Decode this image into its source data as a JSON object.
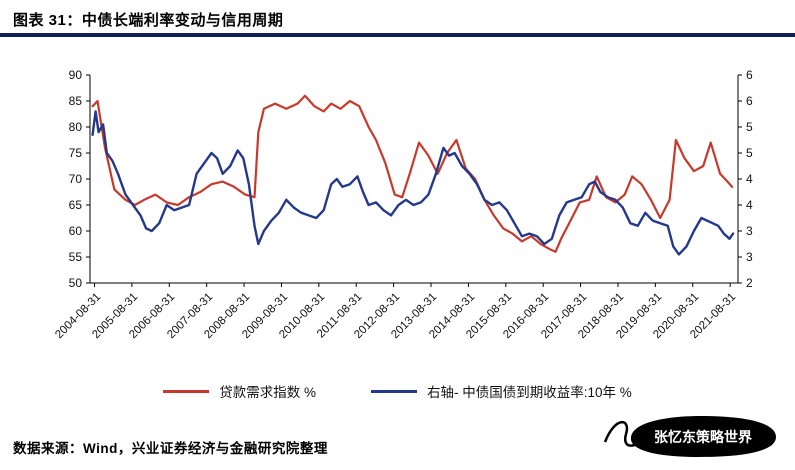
{
  "header": {
    "title": "图表 31：中债长端利率变动与信用周期"
  },
  "colors": {
    "title_rule": "#141e55",
    "loan_demand_red": "#c8392b",
    "bond_yield_blue": "#24388c",
    "axis_line": "#000000"
  },
  "legend": {
    "items": [
      {
        "label": "贷款需求指数 %",
        "color": "#c8392b"
      },
      {
        "label": "右轴- 中债国债到期收益率:10年 %",
        "color": "#24388c"
      }
    ]
  },
  "footer": {
    "source_text": "数据来源：Wind，兴业证券经济与金融研究院整理"
  },
  "watermark": {
    "text": "张忆东策略世界"
  },
  "chart_data": {
    "type": "line",
    "title": "中债长端利率变动与信用周期",
    "x_min": 2004.55,
    "x_max": 2021.88,
    "grid": false,
    "legend_position": "bottom",
    "left_axis": {
      "label": "贷款需求指数 %",
      "min": 50,
      "max": 90,
      "ticks": [
        90,
        85,
        80,
        75,
        70,
        65,
        60,
        55,
        50
      ]
    },
    "right_axis": {
      "label": "中债国债到期收益率:10年 %",
      "min": 2,
      "max": 6,
      "ticks": [
        {
          "value": 6,
          "label": "6"
        },
        {
          "value": 5.5,
          "label": "6"
        },
        {
          "value": 5,
          "label": "5"
        },
        {
          "value": 4.5,
          "label": "5"
        },
        {
          "value": 4,
          "label": "4"
        },
        {
          "value": 3.5,
          "label": "4"
        },
        {
          "value": 3,
          "label": "3"
        },
        {
          "value": 2.5,
          "label": "3"
        },
        {
          "value": 2,
          "label": "2"
        }
      ]
    },
    "x_ticks": [
      {
        "value": 2004.67,
        "label": "2004-08-31"
      },
      {
        "value": 2005.67,
        "label": "2005-08-31"
      },
      {
        "value": 2006.67,
        "label": "2006-08-31"
      },
      {
        "value": 2007.67,
        "label": "2007-08-31"
      },
      {
        "value": 2008.67,
        "label": "2008-08-31"
      },
      {
        "value": 2009.67,
        "label": "2009-08-31"
      },
      {
        "value": 2010.67,
        "label": "2010-08-31"
      },
      {
        "value": 2011.67,
        "label": "2011-08-31"
      },
      {
        "value": 2012.67,
        "label": "2012-08-31"
      },
      {
        "value": 2013.67,
        "label": "2013-08-31"
      },
      {
        "value": 2014.67,
        "label": "2014-08-31"
      },
      {
        "value": 2015.67,
        "label": "2015-08-31"
      },
      {
        "value": 2016.67,
        "label": "2016-08-31"
      },
      {
        "value": 2017.67,
        "label": "2017-08-31"
      },
      {
        "value": 2018.67,
        "label": "2018-08-31"
      },
      {
        "value": 2019.67,
        "label": "2019-08-31"
      },
      {
        "value": 2020.67,
        "label": "2020-08-31"
      },
      {
        "value": 2021.67,
        "label": "2021-08-31"
      }
    ],
    "series": [
      {
        "name": "贷款需求指数 %",
        "axis": "left",
        "color": "#c8392b",
        "width": 2.2,
        "points": [
          [
            2004.62,
            84
          ],
          [
            2004.75,
            85
          ],
          [
            2004.95,
            76
          ],
          [
            2005.2,
            68
          ],
          [
            2005.5,
            66
          ],
          [
            2005.75,
            65
          ],
          [
            2006.0,
            66
          ],
          [
            2006.3,
            67
          ],
          [
            2006.6,
            65.5
          ],
          [
            2006.9,
            65
          ],
          [
            2007.2,
            66.5
          ],
          [
            2007.5,
            67.5
          ],
          [
            2007.8,
            69
          ],
          [
            2008.1,
            69.5
          ],
          [
            2008.4,
            68.5
          ],
          [
            2008.7,
            67
          ],
          [
            2008.95,
            66.5
          ],
          [
            2009.05,
            79
          ],
          [
            2009.2,
            83.5
          ],
          [
            2009.5,
            84.5
          ],
          [
            2009.8,
            83.5
          ],
          [
            2010.1,
            84.5
          ],
          [
            2010.3,
            86
          ],
          [
            2010.55,
            84
          ],
          [
            2010.8,
            83
          ],
          [
            2011.0,
            84.5
          ],
          [
            2011.25,
            83.5
          ],
          [
            2011.5,
            85
          ],
          [
            2011.75,
            84
          ],
          [
            2012.0,
            80
          ],
          [
            2012.2,
            77.5
          ],
          [
            2012.45,
            73
          ],
          [
            2012.7,
            67
          ],
          [
            2012.9,
            66.5
          ],
          [
            2013.1,
            71
          ],
          [
            2013.35,
            77
          ],
          [
            2013.6,
            74.5
          ],
          [
            2013.85,
            71
          ],
          [
            2014.1,
            75
          ],
          [
            2014.35,
            77.5
          ],
          [
            2014.6,
            72
          ],
          [
            2014.85,
            70
          ],
          [
            2015.1,
            66
          ],
          [
            2015.35,
            63
          ],
          [
            2015.6,
            60.5
          ],
          [
            2015.85,
            59.5
          ],
          [
            2016.1,
            58
          ],
          [
            2016.35,
            59
          ],
          [
            2016.6,
            57.5
          ],
          [
            2016.85,
            56.5
          ],
          [
            2017.0,
            56
          ],
          [
            2017.15,
            58.5
          ],
          [
            2017.4,
            62
          ],
          [
            2017.65,
            65.5
          ],
          [
            2017.9,
            66
          ],
          [
            2018.1,
            70.5
          ],
          [
            2018.35,
            66.5
          ],
          [
            2018.6,
            65.5
          ],
          [
            2018.85,
            67
          ],
          [
            2019.05,
            70.5
          ],
          [
            2019.3,
            69
          ],
          [
            2019.55,
            66
          ],
          [
            2019.8,
            62.5
          ],
          [
            2020.05,
            66
          ],
          [
            2020.22,
            77.5
          ],
          [
            2020.45,
            74
          ],
          [
            2020.7,
            71.5
          ],
          [
            2020.95,
            72.5
          ],
          [
            2021.15,
            77
          ],
          [
            2021.4,
            71
          ],
          [
            2021.6,
            69.5
          ],
          [
            2021.72,
            68.5
          ]
        ]
      },
      {
        "name": "右轴- 中债国债到期收益率:10年 %",
        "axis": "right",
        "color": "#24388c",
        "width": 2.4,
        "points": [
          [
            2004.62,
            4.85
          ],
          [
            2004.7,
            5.3
          ],
          [
            2004.78,
            4.9
          ],
          [
            2004.9,
            5.05
          ],
          [
            2005.0,
            4.5
          ],
          [
            2005.15,
            4.35
          ],
          [
            2005.3,
            4.1
          ],
          [
            2005.5,
            3.7
          ],
          [
            2005.7,
            3.5
          ],
          [
            2005.9,
            3.3
          ],
          [
            2006.05,
            3.05
          ],
          [
            2006.2,
            3.0
          ],
          [
            2006.4,
            3.15
          ],
          [
            2006.6,
            3.5
          ],
          [
            2006.8,
            3.4
          ],
          [
            2007.0,
            3.45
          ],
          [
            2007.2,
            3.5
          ],
          [
            2007.4,
            4.1
          ],
          [
            2007.6,
            4.3
          ],
          [
            2007.8,
            4.5
          ],
          [
            2007.95,
            4.4
          ],
          [
            2008.1,
            4.1
          ],
          [
            2008.3,
            4.25
          ],
          [
            2008.5,
            4.55
          ],
          [
            2008.65,
            4.4
          ],
          [
            2008.8,
            3.9
          ],
          [
            2008.95,
            3.1
          ],
          [
            2009.05,
            2.75
          ],
          [
            2009.2,
            3.0
          ],
          [
            2009.4,
            3.2
          ],
          [
            2009.6,
            3.35
          ],
          [
            2009.8,
            3.6
          ],
          [
            2010.0,
            3.45
          ],
          [
            2010.2,
            3.35
          ],
          [
            2010.4,
            3.3
          ],
          [
            2010.6,
            3.25
          ],
          [
            2010.8,
            3.4
          ],
          [
            2011.0,
            3.9
          ],
          [
            2011.15,
            4.0
          ],
          [
            2011.3,
            3.85
          ],
          [
            2011.5,
            3.9
          ],
          [
            2011.7,
            4.05
          ],
          [
            2011.85,
            3.75
          ],
          [
            2012.0,
            3.5
          ],
          [
            2012.2,
            3.55
          ],
          [
            2012.4,
            3.4
          ],
          [
            2012.6,
            3.3
          ],
          [
            2012.8,
            3.5
          ],
          [
            2013.0,
            3.6
          ],
          [
            2013.2,
            3.5
          ],
          [
            2013.4,
            3.55
          ],
          [
            2013.6,
            3.7
          ],
          [
            2013.8,
            4.1
          ],
          [
            2014.0,
            4.6
          ],
          [
            2014.15,
            4.45
          ],
          [
            2014.3,
            4.5
          ],
          [
            2014.5,
            4.25
          ],
          [
            2014.7,
            4.1
          ],
          [
            2014.9,
            3.9
          ],
          [
            2015.1,
            3.6
          ],
          [
            2015.3,
            3.5
          ],
          [
            2015.5,
            3.55
          ],
          [
            2015.7,
            3.4
          ],
          [
            2015.9,
            3.15
          ],
          [
            2016.1,
            2.9
          ],
          [
            2016.3,
            2.95
          ],
          [
            2016.5,
            2.9
          ],
          [
            2016.7,
            2.75
          ],
          [
            2016.9,
            2.85
          ],
          [
            2017.1,
            3.3
          ],
          [
            2017.3,
            3.55
          ],
          [
            2017.5,
            3.6
          ],
          [
            2017.7,
            3.65
          ],
          [
            2017.9,
            3.9
          ],
          [
            2018.05,
            3.95
          ],
          [
            2018.2,
            3.75
          ],
          [
            2018.4,
            3.65
          ],
          [
            2018.6,
            3.6
          ],
          [
            2018.8,
            3.45
          ],
          [
            2019.0,
            3.15
          ],
          [
            2019.2,
            3.1
          ],
          [
            2019.4,
            3.35
          ],
          [
            2019.6,
            3.2
          ],
          [
            2019.8,
            3.15
          ],
          [
            2020.0,
            3.1
          ],
          [
            2020.15,
            2.7
          ],
          [
            2020.3,
            2.55
          ],
          [
            2020.5,
            2.7
          ],
          [
            2020.7,
            3.0
          ],
          [
            2020.9,
            3.25
          ],
          [
            2021.05,
            3.2
          ],
          [
            2021.2,
            3.15
          ],
          [
            2021.35,
            3.1
          ],
          [
            2021.5,
            2.95
          ],
          [
            2021.65,
            2.85
          ],
          [
            2021.75,
            2.95
          ]
        ]
      }
    ]
  }
}
